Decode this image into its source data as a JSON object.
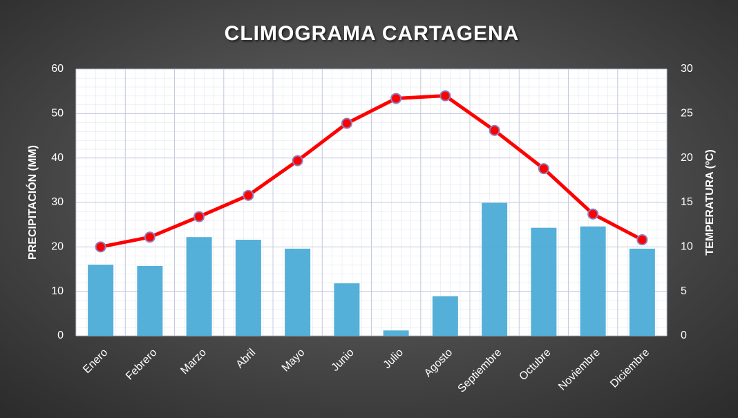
{
  "chart_data": {
    "type": "combo",
    "title": "CLIMOGRAMA CARTAGENA",
    "ylabel": "PRECIPITACIÓN (MM)",
    "y2label": "TEMPERATURA (ºC)",
    "categories": [
      "Enero",
      "Febrero",
      "Marzo",
      "Abril",
      "Mayo",
      "Junio",
      "Julio",
      "Agosto",
      "Septiembre",
      "Octubre",
      "Noviembre",
      "Diciembre"
    ],
    "series": [
      {
        "type": "bar",
        "color": "#4bacd6",
        "values": [
          16.0,
          15.7,
          22.2,
          21.6,
          19.6,
          11.8,
          1.2,
          8.9,
          29.9,
          24.3,
          24.6,
          19.6
        ]
      },
      {
        "type": "line",
        "axis": "y2",
        "color": "#ff0000",
        "values": [
          10.0,
          11.1,
          13.4,
          15.8,
          19.7,
          23.9,
          26.7,
          27.0,
          23.1,
          18.8,
          13.7,
          10.8
        ]
      }
    ],
    "ylim": [
      0,
      60
    ],
    "yticks": [
      0,
      10,
      20,
      30,
      40,
      50,
      60
    ],
    "y2lim": [
      0,
      30
    ],
    "y2ticks": [
      0,
      5,
      10,
      15,
      20,
      25,
      30
    ],
    "grid": true
  }
}
